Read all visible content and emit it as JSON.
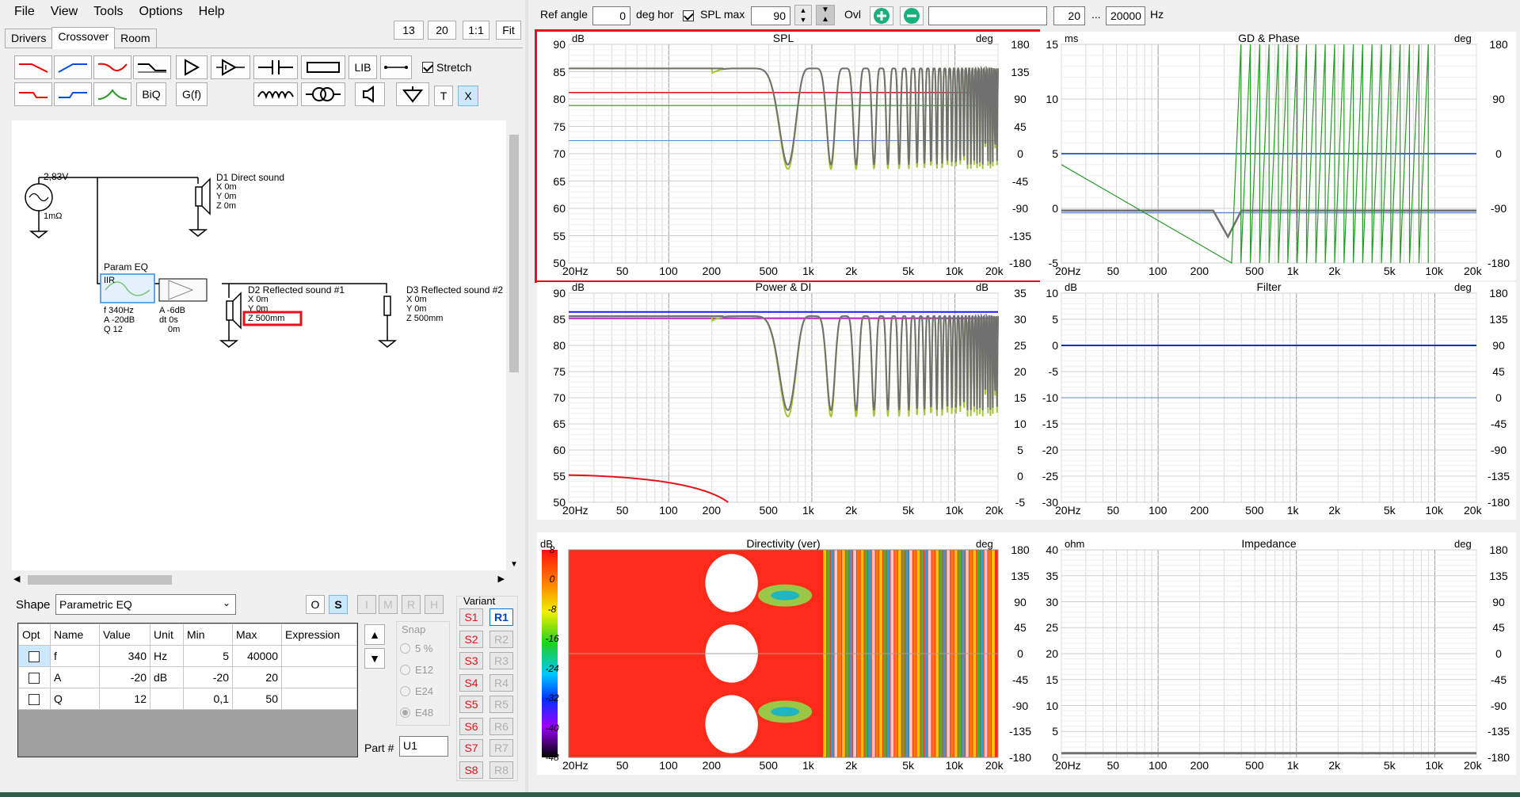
{
  "menu": [
    "File",
    "View",
    "Tools",
    "Options",
    "Help"
  ],
  "tabs": [
    "Drivers",
    "Crossover",
    "Room"
  ],
  "active_tab": "Crossover",
  "zoom_buttons": [
    "13",
    "20",
    "1:1",
    "Fit"
  ],
  "toolbar": {
    "lib_label": "LIB",
    "stretch_label": "Stretch",
    "stretch_checked": true,
    "biq_label": "BiQ",
    "gf_label": "G(f)",
    "t_label": "T",
    "x_label": "X"
  },
  "schematic": {
    "source_voltage": "2,83V",
    "source_resistance": "1mΩ",
    "d1_name": "D1 Direct sound",
    "d1_x": "X 0m",
    "d1_y": "Y 0m",
    "d1_z": "Z 0m",
    "peq_title": "Param EQ",
    "iir_label": "IIR",
    "peq_f": "f  340Hz",
    "peq_a": "A -20dB",
    "peq_q": "Q 12",
    "amp_a": "A -6dB",
    "amp_dt": "dt 0s",
    "amp_m": "0m",
    "d2_name": "D2 Reflected sound #1",
    "d2_x": "X 0m",
    "d2_y": "Y 0m",
    "d2_z": "Z 500mm",
    "d3_name": "D3 Reflected sound #2",
    "d3_x": "X 0m",
    "d3_y": "Y 0m",
    "d3_z": "Z 500mm"
  },
  "shape": {
    "label": "Shape",
    "value": "Parametric EQ",
    "mode_buttons": [
      "O",
      "S",
      "I",
      "M",
      "R",
      "H"
    ],
    "selected_mode": "S"
  },
  "param_table": {
    "headers": [
      "Opt",
      "Name",
      "Value",
      "Unit",
      "Min",
      "Max",
      "Expression"
    ],
    "rows": [
      {
        "name": "f",
        "value": "340",
        "unit": "Hz",
        "min": "5",
        "max": "40000",
        "expr": ""
      },
      {
        "name": "A",
        "value": "-20",
        "unit": "dB",
        "min": "-20",
        "max": "20",
        "expr": ""
      },
      {
        "name": "Q",
        "value": "12",
        "unit": "",
        "min": "0,1",
        "max": "50",
        "expr": ""
      }
    ]
  },
  "snap": {
    "label": "Snap",
    "options": [
      "5 %",
      "E12",
      "E24",
      "E48"
    ],
    "selected": "E48"
  },
  "part": {
    "label": "Part #",
    "value": "U1"
  },
  "variant": {
    "label": "Variant",
    "s_buttons": [
      "S1",
      "S2",
      "S3",
      "S4",
      "S5",
      "S6",
      "S7",
      "S8"
    ],
    "r_buttons": [
      "R1",
      "R2",
      "R3",
      "R4",
      "R5",
      "R6",
      "R7",
      "R8"
    ],
    "selected_r": "R1"
  },
  "topbar": {
    "ref_angle_label": "Ref angle",
    "ref_angle_value": "0",
    "deg_hor_label": "deg hor",
    "spl_max_label": "SPL max",
    "spl_max_checked": true,
    "spl_max_value": "90",
    "ovl_label": "Ovl",
    "freq_min": "20",
    "dots": "...",
    "freq_max": "20000",
    "hz_label": "Hz"
  },
  "graphs": {
    "x_ticks": [
      "20Hz",
      "50",
      "100",
      "200",
      "500",
      "1k",
      "2k",
      "5k",
      "10k",
      "20k"
    ],
    "spl": {
      "title": "SPL",
      "left_unit": "dB",
      "right_unit": "deg",
      "left_ticks": [
        "90",
        "85",
        "80",
        "75",
        "70",
        "65",
        "60",
        "55",
        "50"
      ],
      "right_ticks": [
        "180",
        "135",
        "90",
        "45",
        "0",
        "-45",
        "-90",
        "-135",
        "-180"
      ]
    },
    "gd": {
      "title": "GD & Phase",
      "left_unit": "ms",
      "right_unit": "deg",
      "left_ticks": [
        "15",
        "10",
        "5",
        "0",
        "-5"
      ],
      "right_ticks": [
        "180",
        "90",
        "0",
        "-90",
        "-180"
      ]
    },
    "power": {
      "title": "Power & DI",
      "left_unit": "dB",
      "right_unit": "dB",
      "left_ticks": [
        "90",
        "85",
        "80",
        "75",
        "70",
        "65",
        "60",
        "55",
        "50"
      ],
      "right_ticks": [
        "35",
        "30",
        "25",
        "20",
        "15",
        "10",
        "5",
        "0",
        "-5"
      ]
    },
    "filter": {
      "title": "Filter",
      "left_unit": "dB",
      "right_unit": "deg",
      "left_ticks": [
        "10",
        "5",
        "0",
        "-5",
        "-10",
        "-15",
        "-20",
        "-25",
        "-30"
      ],
      "right_ticks": [
        "180",
        "135",
        "90",
        "45",
        "0",
        "-45",
        "-90",
        "-135",
        "-180"
      ]
    },
    "directivity": {
      "title": "Directivity (ver)",
      "left_unit": "dB",
      "right_unit": "deg",
      "scale_ticks": [
        "8",
        "0",
        "-8",
        "-16",
        "-24",
        "-32",
        "-40",
        "-48"
      ],
      "right_ticks": [
        "180",
        "135",
        "90",
        "45",
        "0",
        "-45",
        "-90",
        "-135",
        "-180"
      ]
    },
    "impedance": {
      "title": "Impedance",
      "left_unit": "ohm",
      "right_unit": "deg",
      "left_ticks": [
        "40",
        "35",
        "30",
        "25",
        "20",
        "15",
        "10",
        "5",
        "0"
      ],
      "right_ticks": [
        "180",
        "135",
        "90",
        "45",
        "0",
        "-45",
        "-90",
        "-135",
        "-180"
      ]
    }
  },
  "colors": {
    "highlight": "#e8101a",
    "accent_blue": "#0050c8",
    "green_curve": "#3aa33a",
    "gray_curve": "#707070",
    "lime_curve": "#a6c63a"
  }
}
